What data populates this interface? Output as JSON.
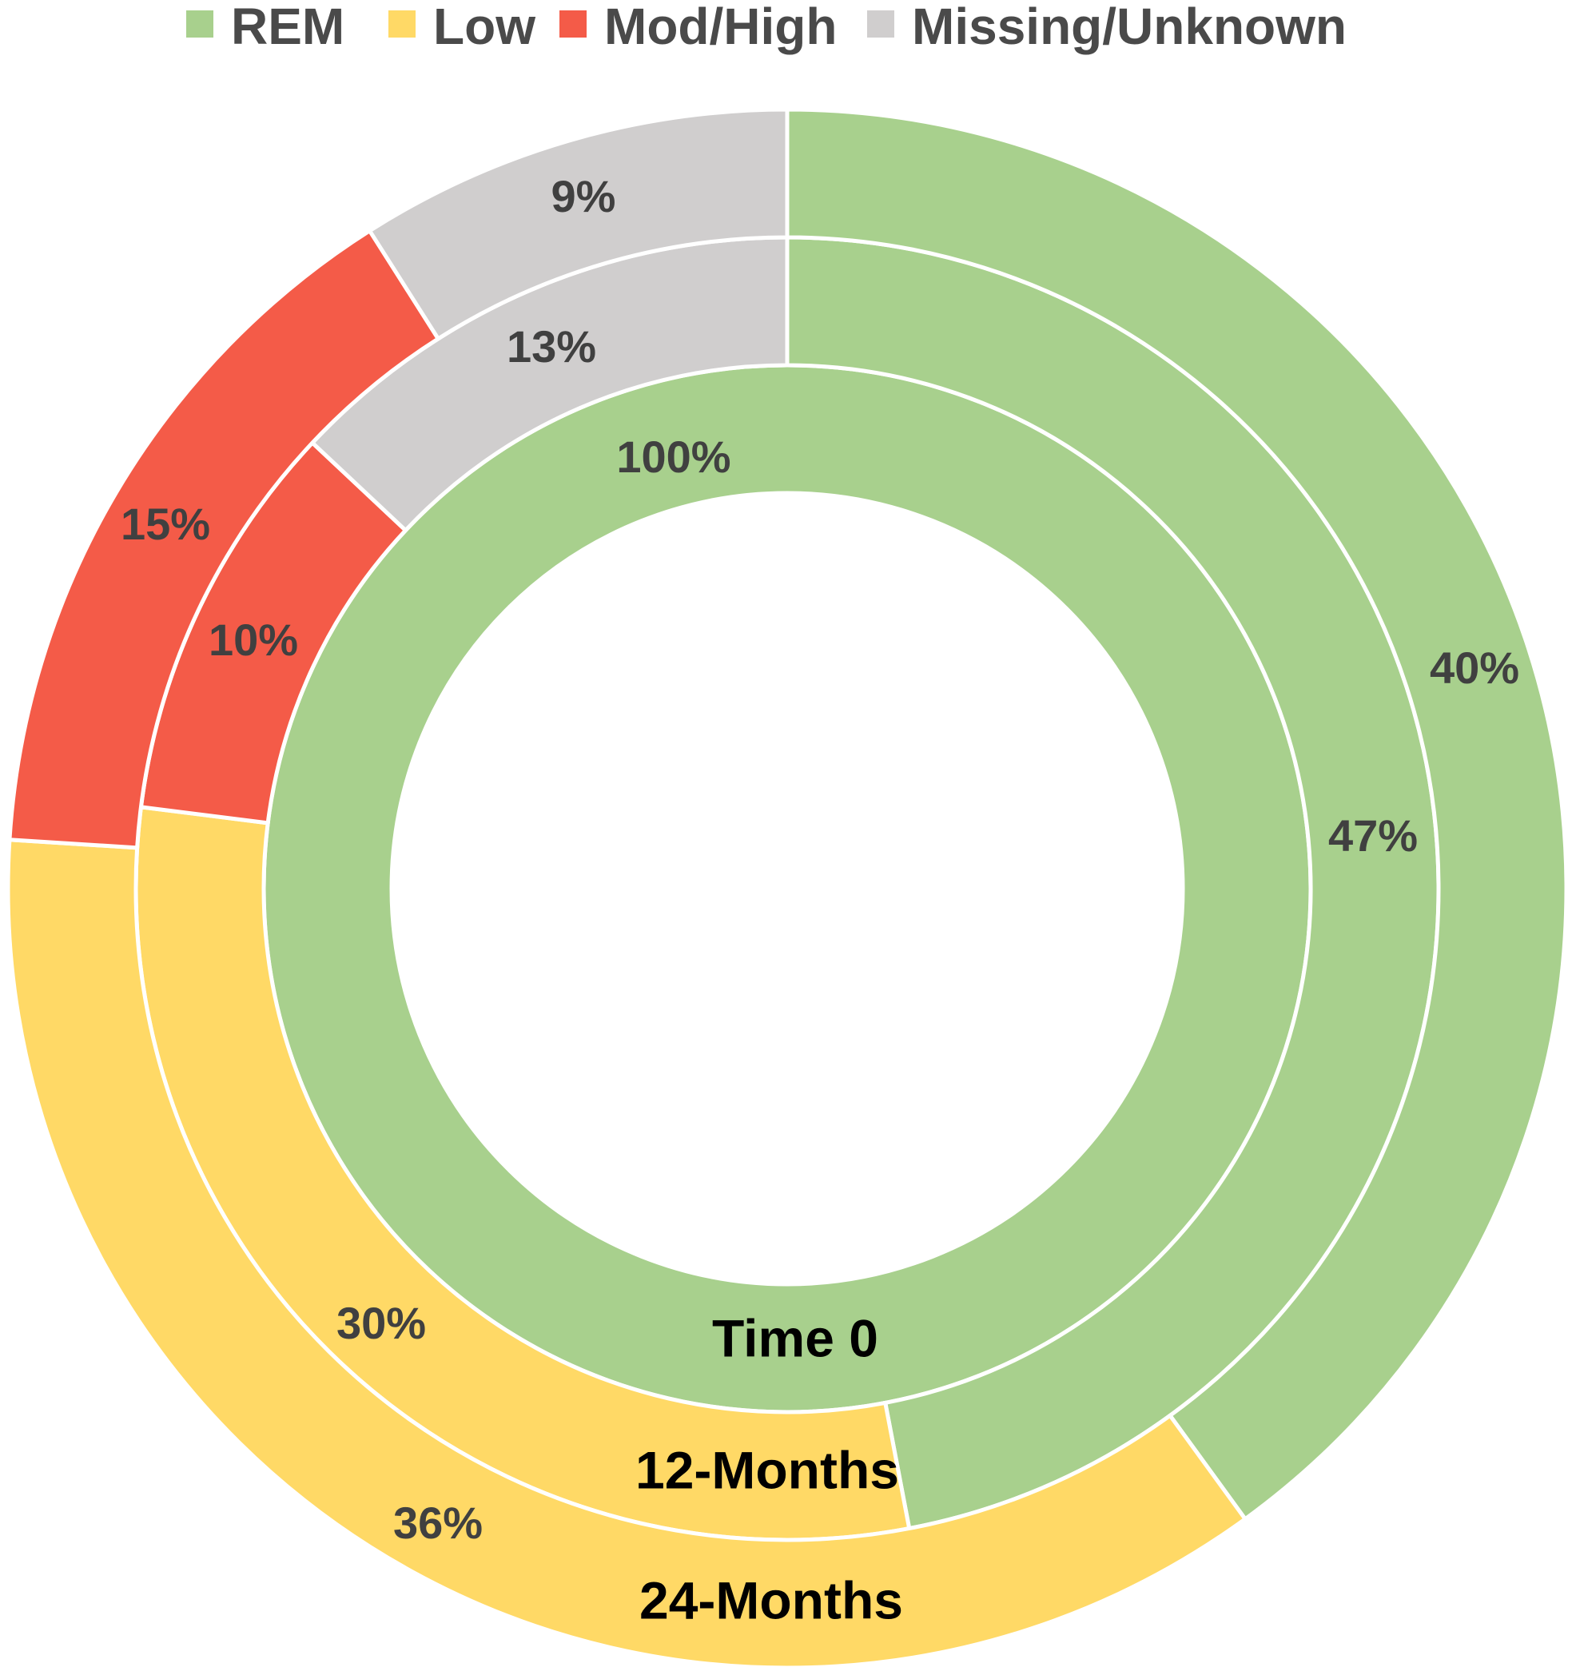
{
  "chart_data": {
    "type": "pie",
    "variant": "multi-ring donut",
    "legend": {
      "placement": "top",
      "entries": [
        {
          "label": "REM",
          "color": "#a8d08d"
        },
        {
          "label": "Low",
          "color": "#ffd966"
        },
        {
          "label": "Mod/High",
          "color": "#f45b48"
        },
        {
          "label": "Missing/Unknown",
          "color": "#d0cece"
        }
      ]
    },
    "series": [
      {
        "name": "Time 0",
        "ring": "inner",
        "values": [
          100,
          0,
          0,
          0
        ],
        "labels": [
          "100%",
          "",
          "",
          ""
        ]
      },
      {
        "name": "12-Months",
        "ring": "middle",
        "values": [
          47,
          30,
          10,
          13
        ],
        "labels": [
          "47%",
          "30%",
          "10%",
          "13%"
        ]
      },
      {
        "name": "24-Months",
        "ring": "outer",
        "values": [
          40,
          36,
          15,
          9
        ],
        "labels": [
          "40%",
          "36%",
          "15%",
          "9%"
        ]
      }
    ]
  }
}
